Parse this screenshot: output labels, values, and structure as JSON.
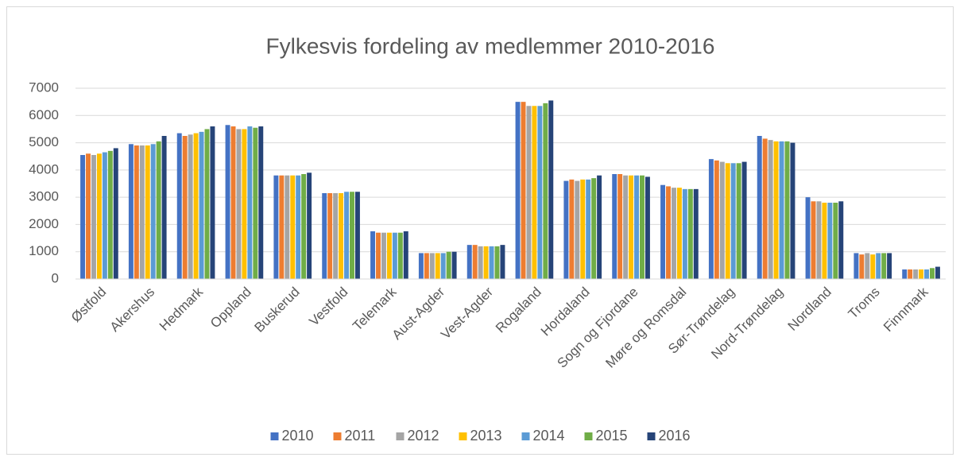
{
  "chart_data": {
    "type": "bar",
    "title": "Fylkesvis fordeling av medlemmer 2010-2016",
    "categories": [
      "Østfold",
      "Akershus",
      "Hedmark",
      "Oppland",
      "Buskerud",
      "Vestfold",
      "Telemark",
      "Aust-Agder",
      "Vest-Agder",
      "Rogaland",
      "Hordaland",
      "Sogn og Fjordane",
      "Møre og Romsdal",
      "Sør-Trøndelag",
      "Nord-Trøndelag",
      "Nordland",
      "Troms",
      "Finnmark"
    ],
    "series": [
      {
        "name": "2010",
        "color": "#4472c4",
        "values": [
          4550,
          4950,
          5350,
          5650,
          3800,
          3150,
          1750,
          950,
          1250,
          6500,
          3600,
          3850,
          3450,
          4400,
          5250,
          3000,
          950,
          350
        ]
      },
      {
        "name": "2011",
        "color": "#ed7d31",
        "values": [
          4600,
          4900,
          5250,
          5600,
          3800,
          3150,
          1700,
          950,
          1250,
          6500,
          3650,
          3850,
          3400,
          4350,
          5150,
          2850,
          900,
          350
        ]
      },
      {
        "name": "2012",
        "color": "#a5a5a5",
        "values": [
          4550,
          4900,
          5300,
          5500,
          3800,
          3150,
          1700,
          950,
          1200,
          6350,
          3600,
          3800,
          3350,
          4300,
          5100,
          2850,
          950,
          350
        ]
      },
      {
        "name": "2013",
        "color": "#ffc000",
        "values": [
          4600,
          4900,
          5350,
          5500,
          3800,
          3150,
          1700,
          950,
          1200,
          6350,
          3650,
          3800,
          3350,
          4250,
          5050,
          2800,
          900,
          350
        ]
      },
      {
        "name": "2014",
        "color": "#5b9bd5",
        "values": [
          4650,
          4950,
          5400,
          5600,
          3800,
          3200,
          1700,
          950,
          1200,
          6350,
          3650,
          3800,
          3300,
          4250,
          5050,
          2800,
          950,
          350
        ]
      },
      {
        "name": "2015",
        "color": "#70ad47",
        "values": [
          4700,
          5050,
          5500,
          5550,
          3850,
          3200,
          1700,
          1000,
          1200,
          6450,
          3700,
          3800,
          3300,
          4250,
          5050,
          2800,
          950,
          400
        ]
      },
      {
        "name": "2016",
        "color": "#264478",
        "values": [
          4800,
          5250,
          5600,
          5600,
          3900,
          3200,
          1750,
          1000,
          1250,
          6550,
          3800,
          3750,
          3300,
          4300,
          5000,
          2850,
          950,
          450
        ]
      }
    ],
    "ylim": [
      0,
      7000
    ],
    "yticks": [
      0,
      1000,
      2000,
      3000,
      4000,
      5000,
      6000,
      7000
    ],
    "grid": true,
    "legend": "bottom"
  }
}
